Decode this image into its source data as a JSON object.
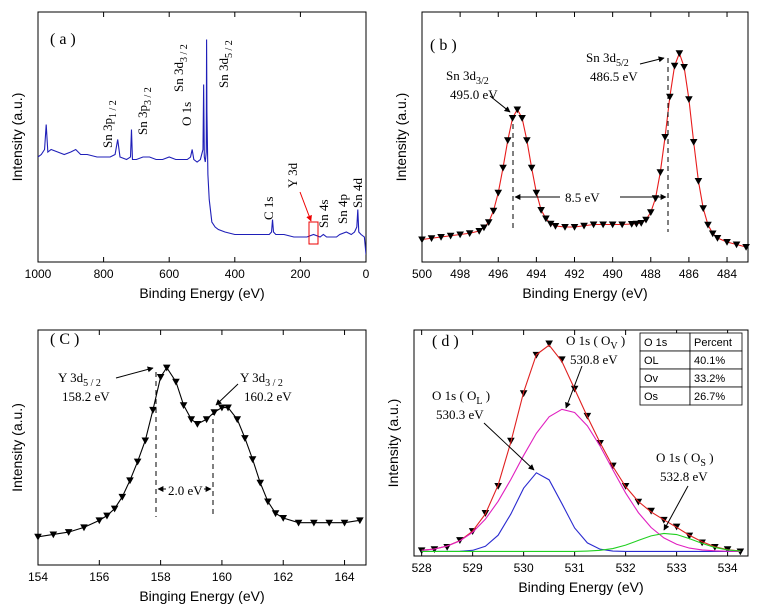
{
  "chart_data": [
    {
      "type": "line",
      "panel_label": "( a )",
      "xlabel": "Binding Energy (eV)",
      "ylabel": "Intensity (a.u.)",
      "xlim": [
        1000,
        0
      ],
      "xticks": [
        1000,
        800,
        600,
        400,
        200,
        0
      ],
      "ylim": [
        0,
        100
      ],
      "x": [
        1000,
        990,
        980,
        975,
        970,
        960,
        940,
        920,
        900,
        885,
        870,
        850,
        820,
        800,
        780,
        765,
        757,
        750,
        730,
        718,
        715,
        712,
        700,
        680,
        660,
        640,
        620,
        600,
        580,
        560,
        545,
        535,
        530,
        525,
        515,
        505,
        497,
        495,
        493,
        490,
        487,
        486,
        485,
        482,
        478,
        470,
        460,
        450,
        430,
        400,
        370,
        340,
        310,
        295,
        288,
        285,
        282,
        275,
        250,
        220,
        200,
        180,
        160,
        140,
        130,
        120,
        100,
        90,
        80,
        60,
        45,
        35,
        28,
        25,
        22,
        15,
        5,
        0
      ],
      "series": [
        {
          "line_color": "#1f1fb8",
          "values": [
            42,
            43,
            45,
            55,
            44,
            45,
            44,
            43,
            44,
            45,
            43,
            43,
            42,
            42,
            42,
            43,
            49,
            42,
            41,
            42,
            53,
            41,
            41,
            42,
            42,
            41,
            41,
            42,
            41,
            41,
            41,
            42,
            45,
            41,
            40,
            41,
            45,
            71,
            42,
            40,
            44,
            89,
            60,
            35,
            25,
            16,
            14,
            13,
            12,
            11,
            11,
            11,
            11,
            11,
            12,
            17,
            12,
            11,
            11,
            10,
            10,
            10,
            11,
            10,
            11,
            10,
            10,
            10,
            11,
            12,
            11,
            12,
            14,
            21,
            12,
            11,
            10,
            3
          ]
        }
      ],
      "annotations": [
        {
          "text": "Sn 3p",
          "sub": "1 / 2"
        },
        {
          "text": "Sn 3p",
          "sub": "3 / 2"
        },
        {
          "text": "O 1s"
        },
        {
          "text": "Sn 3d",
          "sub": "3 / 2"
        },
        {
          "text": "Sn 3d",
          "sub": "5 / 2"
        },
        {
          "text": "C 1s"
        },
        {
          "text": "Y 3d"
        },
        {
          "text": "Sn 4s"
        },
        {
          "text": "Sn 4p"
        },
        {
          "text": "Sn 4d"
        }
      ]
    },
    {
      "type": "line",
      "panel_label": "( b )",
      "xlabel": "Binding Energy (eV)",
      "ylabel": "Intensity (a.u.)",
      "xlim": [
        500,
        482.9
      ],
      "xticks": [
        500,
        498,
        496,
        494,
        492,
        490,
        488,
        486,
        484
      ],
      "ylim": [
        0,
        100
      ],
      "x": [
        500,
        499.5,
        499,
        498.5,
        498,
        497.5,
        497,
        496.75,
        496.5,
        496.25,
        496,
        495.75,
        495.5,
        495.25,
        495,
        494.75,
        494.5,
        494.25,
        494,
        493.75,
        493.5,
        493.25,
        493,
        492.5,
        492,
        491.5,
        491,
        490.5,
        490,
        489.5,
        489,
        488.75,
        488.5,
        488.25,
        488,
        487.75,
        487.5,
        487.25,
        487,
        486.75,
        486.5,
        486.25,
        486,
        485.75,
        485.5,
        485.25,
        485,
        484.75,
        484.5,
        484,
        483.5,
        483
      ],
      "series": [
        {
          "color": "#000000",
          "marker": "triangle-down",
          "line_color": "#e81c1c",
          "values": [
            9,
            9.5,
            10,
            10.5,
            11,
            11.5,
            12.4,
            13.8,
            15.9,
            20.5,
            27.7,
            37.7,
            48.7,
            57.6,
            61,
            57.6,
            48.7,
            37.7,
            27.7,
            20.8,
            17.4,
            15.3,
            14.4,
            14,
            14,
            14.5,
            15,
            15,
            15,
            15,
            15.2,
            15.3,
            15.6,
            16.9,
            19.9,
            25.5,
            35.9,
            50,
            66.1,
            78.5,
            83.5,
            78,
            65.1,
            48,
            32.4,
            21.5,
            14.9,
            11.4,
            9.6,
            8,
            7,
            6
          ]
        }
      ],
      "annotations": [
        {
          "text": "Sn 3d",
          "sub": "3/2",
          "value": "495.0 eV"
        },
        {
          "text": "Sn 3d",
          "sub": "5/2",
          "value": "486.5 eV"
        },
        {
          "text": "8.5 eV"
        }
      ]
    },
    {
      "type": "line",
      "panel_label": "( C )",
      "xlabel": "Binging Energy (eV)",
      "ylabel": "Intensity (a.u.)",
      "xlim": [
        154,
        164.7
      ],
      "xticks": [
        154,
        156,
        158,
        160,
        162,
        164
      ],
      "ylim": [
        0,
        100
      ],
      "x": [
        154,
        154.5,
        155,
        155.5,
        156,
        156.25,
        156.5,
        156.75,
        157,
        157.25,
        157.5,
        157.75,
        158,
        158.2,
        158.5,
        158.75,
        159,
        159.2,
        159.5,
        159.75,
        160,
        160.2,
        160.5,
        160.75,
        161,
        161.25,
        161.5,
        161.75,
        162,
        162.5,
        163,
        163.5,
        164,
        164.5
      ],
      "series": [
        {
          "color": "#000000",
          "marker": "triangle-down",
          "line_color": "#000000",
          "values": [
            12,
            13,
            14,
            16,
            19,
            21,
            24,
            29,
            36,
            44,
            53,
            66,
            80,
            84,
            78,
            68,
            62,
            60,
            62,
            65,
            67,
            67,
            62,
            54,
            45,
            35,
            27,
            22,
            20,
            18,
            18,
            18,
            18,
            19
          ]
        }
      ],
      "annotations": [
        {
          "text": "Y 3d",
          "sub": "5 / 2",
          "value": "158.2 eV"
        },
        {
          "text": "Y 3d",
          "sub": "3 / 2",
          "value": "160.2 eV"
        },
        {
          "text": "2.0 eV"
        }
      ]
    },
    {
      "type": "line",
      "panel_label": "( d )",
      "xlabel": "Binding Energy (eV)",
      "ylabel": "Intensity (a.u.)",
      "xlim": [
        527.85,
        534.4
      ],
      "xticks": [
        528,
        529,
        530,
        531,
        532,
        533,
        534
      ],
      "ylim": [
        0,
        100
      ],
      "x": [
        528,
        528.25,
        528.5,
        528.75,
        529,
        529.25,
        529.5,
        529.75,
        530,
        530.25,
        530.5,
        530.75,
        531,
        531.25,
        531.5,
        531.75,
        532,
        532.25,
        532.5,
        532.75,
        533,
        533.25,
        533.5,
        533.75,
        534,
        534.25
      ],
      "series": [
        {
          "color": "#000000",
          "marker": "triangle-down",
          "values": [
            2.5,
            3,
            4,
            7,
            11,
            19,
            31,
            51,
            72,
            89,
            94,
            87,
            74,
            62,
            50,
            40,
            31,
            24,
            20,
            16,
            13,
            9,
            6,
            4,
            3,
            2
          ]
        },
        {
          "line_color": "#e02020",
          "values": [
            2.5,
            3.1,
            4.4,
            6.8,
            11,
            18.6,
            31.4,
            50.5,
            72.5,
            89.1,
            93.3,
            86.1,
            73.9,
            61.6,
            50.1,
            39.6,
            30.7,
            24.1,
            19.5,
            16,
            12.7,
            9.2,
            6.3,
            4.1,
            2.8,
            2.2
          ]
        },
        {
          "line_color": "#2b2bd0",
          "values": [
            2,
            2,
            2,
            2.1,
            2.5,
            4.3,
            9.2,
            18.6,
            30,
            36.8,
            33.7,
            23.2,
            12.4,
            5.8,
            3,
            2.2,
            2,
            2,
            2,
            2,
            2,
            2,
            2,
            2,
            2,
            2
          ]
        },
        {
          "line_color": "#e020c0",
          "values": [
            2.5,
            3.1,
            4.4,
            6.7,
            10.5,
            16.3,
            24.2,
            33.9,
            44.5,
            54.3,
            61.6,
            64.9,
            63.5,
            57.6,
            48.6,
            38.1,
            27.9,
            19.2,
            12.6,
            8,
            5.2,
            3.5,
            2.7,
            2.3,
            2.1,
            2
          ]
        },
        {
          "line_color": "#20d020",
          "values": [
            2,
            2,
            2,
            2,
            2,
            2,
            2,
            2,
            2,
            2,
            2,
            2,
            2,
            2.2,
            2.5,
            3.3,
            4.8,
            6.9,
            8.9,
            10,
            9.5,
            7.7,
            5.6,
            3.8,
            2.7,
            2.2
          ]
        }
      ],
      "annotations": [
        {
          "text": "O 1s ( O",
          "sub": "V",
          "tail": " )",
          "value": "530.8 eV"
        },
        {
          "text": "O 1s ( O",
          "sub": "L",
          "tail": " )",
          "value": "530.3 eV"
        },
        {
          "text": "O 1s ( O",
          "sub": "S",
          "tail": " )",
          "value": "532.8 eV"
        }
      ],
      "table": {
        "header": [
          "O 1s",
          "Percent"
        ],
        "rows": [
          [
            "OL",
            "40.1%"
          ],
          [
            "Ov",
            "33.2%"
          ],
          [
            "Os",
            "26.7%"
          ]
        ]
      }
    }
  ]
}
